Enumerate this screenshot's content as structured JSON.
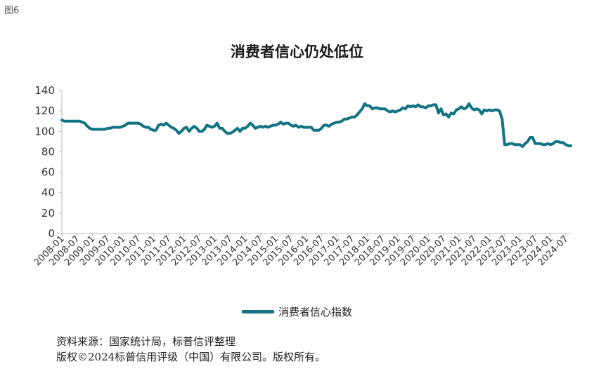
{
  "figure_label": "图6",
  "source_note": "资料来源：国家统计局，标普信评整理",
  "copyright_note": "版权©2024标普信用评级（中国）有限公司。版权所有。",
  "colors": {
    "series": "#127382",
    "axis": "#bbbbbb"
  },
  "chart_data": {
    "type": "line",
    "title": "消费者信心仍处低位",
    "xlabel": "",
    "ylabel": "",
    "ylim": [
      0,
      140
    ],
    "yticks": [
      0,
      20,
      40,
      60,
      80,
      100,
      120,
      140
    ],
    "grid": false,
    "legend_position": "bottom",
    "x_start": "2008-01",
    "x_end": "2024-07",
    "x_tick_labels": [
      "2008-01",
      "2008-07",
      "2009-01",
      "2009-07",
      "2010-01",
      "2010-07",
      "2011-01",
      "2011-07",
      "2012-01",
      "2012-07",
      "2013-01",
      "2013-07",
      "2014-01",
      "2014-07",
      "2015-01",
      "2015-07",
      "2016-01",
      "2016-07",
      "2017-01",
      "2017-07",
      "2018-01",
      "2018-07",
      "2019-01",
      "2019-07",
      "2020-01",
      "2020-07",
      "2021-01",
      "2021-07",
      "2022-01",
      "2022-07",
      "2023-01",
      "2023-07",
      "2024-01",
      "2024-07"
    ],
    "series": [
      {
        "name": "消费者信心指数",
        "color": "#127382",
        "values": [
          111.0,
          110.0,
          110.0,
          110.0,
          110.0,
          110.0,
          110.0,
          110.0,
          109.0,
          108.0,
          105.0,
          103.0,
          102.0,
          102.0,
          102.0,
          102.0,
          102.0,
          102.0,
          103.0,
          103.0,
          104.0,
          104.0,
          104.0,
          104.0,
          105.0,
          106.0,
          108.0,
          108.0,
          108.0,
          108.0,
          108.0,
          107.0,
          105.0,
          104.0,
          104.0,
          102.0,
          101.0,
          101.0,
          106.0,
          107.0,
          106.0,
          108.0,
          106.0,
          104.0,
          103.0,
          101.0,
          98.0,
          100.0,
          103.0,
          104.0,
          100.0,
          103.0,
          105.0,
          103.0,
          100.0,
          100.0,
          102.0,
          106.0,
          105.0,
          104.0,
          105.0,
          108.0,
          103.0,
          103.0,
          100.0,
          98.0,
          98.0,
          99.0,
          101.0,
          103.0,
          100.0,
          103.0,
          103.0,
          105.0,
          108.0,
          106.0,
          103.0,
          104.0,
          105.0,
          104.0,
          105.0,
          104.0,
          105.0,
          106.0,
          106.0,
          107.0,
          109.0,
          107.0,
          108.0,
          108.0,
          106.0,
          105.0,
          106.0,
          104.0,
          105.0,
          104.0,
          104.0,
          104.0,
          104.0,
          101.0,
          101.0,
          101.0,
          103.0,
          106.0,
          106.0,
          105.0,
          107.0,
          108.0,
          109.0,
          109.0,
          110.0,
          112.0,
          112.0,
          113.0,
          114.0,
          114.0,
          116.0,
          119.0,
          122.0,
          127.0,
          125.0,
          125.0,
          122.0,
          123.0,
          123.0,
          122.0,
          122.0,
          122.0,
          120.0,
          119.0,
          120.0,
          119.0,
          120.0,
          121.0,
          123.0,
          122.0,
          125.0,
          124.0,
          125.0,
          124.0,
          126.0,
          124.0,
          124.0,
          123.0,
          125.0,
          125.0,
          126.0,
          126.0,
          118.0,
          122.0,
          116.0,
          117.0,
          114.0,
          118.0,
          117.0,
          121.0,
          122.0,
          124.0,
          122.0,
          123.0,
          127.0,
          123.0,
          121.0,
          122.0,
          121.0,
          117.0,
          121.0,
          120.0,
          121.0,
          120.0,
          121.0,
          121.0,
          120.0,
          112.0,
          87.0,
          87.0,
          88.0,
          88.0,
          87.0,
          87.0,
          87.0,
          85.0,
          88.0,
          90.0,
          94.0,
          94.0,
          88.0,
          88.0,
          88.0,
          87.0,
          87.0,
          88.0,
          87.0,
          88.0,
          90.0,
          90.0,
          89.0,
          89.0,
          87.0,
          86.0,
          86.0
        ]
      }
    ]
  }
}
